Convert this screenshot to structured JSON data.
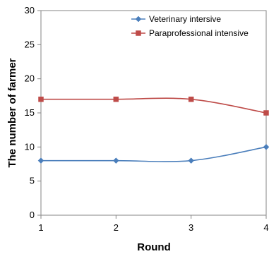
{
  "chart_data": {
    "type": "line",
    "x": [
      1,
      2,
      3,
      4
    ],
    "xticks": [
      "1",
      "2",
      "3",
      "4"
    ],
    "xlim": [
      1,
      4
    ],
    "yticks": [
      "0",
      "5",
      "10",
      "15",
      "20",
      "25",
      "30"
    ],
    "ylim": [
      0,
      30
    ],
    "xlabel": "Round",
    "ylabel": "The number of farmer",
    "legend_position": "top-right",
    "grid": false,
    "series": [
      {
        "name": "Veterinary intersive",
        "values": [
          8,
          8,
          8,
          10
        ],
        "color": "#4A7EBB",
        "marker": "diamond"
      },
      {
        "name": "Paraprofessional intensive",
        "values": [
          17,
          17,
          17,
          15
        ],
        "color": "#BE4B48",
        "marker": "square"
      }
    ]
  }
}
